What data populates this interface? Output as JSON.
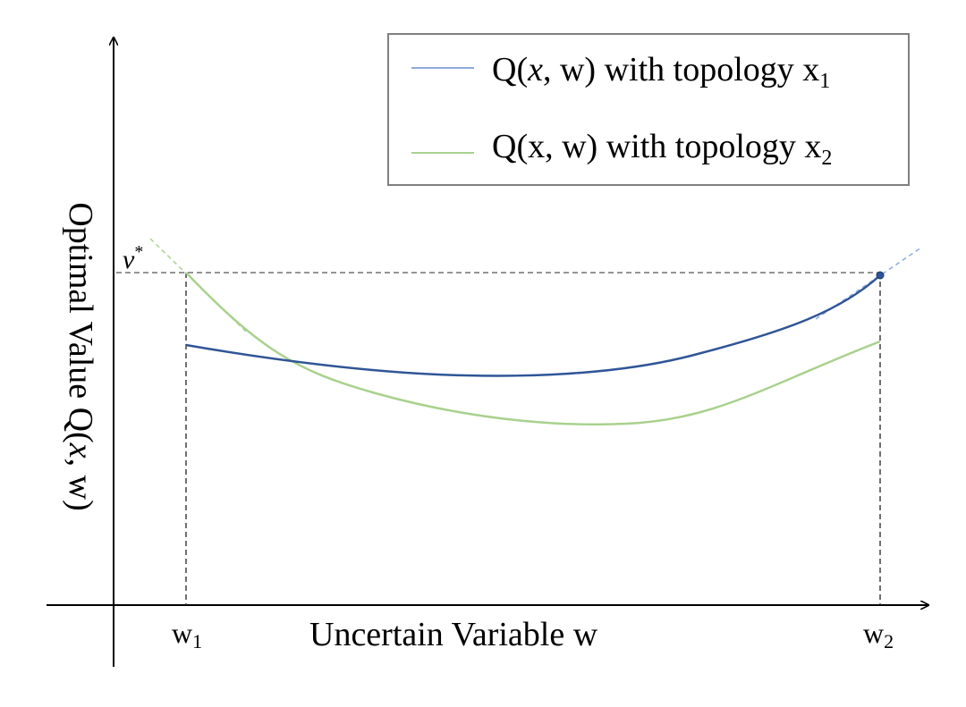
{
  "figure": {
    "y_axis_label": {
      "prefix": "Optimal Value Q(",
      "var": "x",
      "suffix": ", w)"
    },
    "x_axis_label": "Uncertain Variable w",
    "tick_w1": {
      "base": "w",
      "sub": "1"
    },
    "tick_w2": {
      "base": "w",
      "sub": "2"
    },
    "v_star": {
      "base": "v",
      "sup": "*"
    }
  },
  "legend": {
    "items": [
      {
        "prefix": "Q(",
        "var": "x",
        "suffix": ", w) with topology x",
        "sub": "1",
        "color": "#8faadc"
      },
      {
        "prefix": "Q(",
        "var": "x",
        "suffix": ", w) with topology x",
        "sub": "2",
        "color": "#a9d18e",
        "var_plain": true
      }
    ]
  },
  "colors": {
    "curve_x1": "#2f5597",
    "curve_x2": "#a9d18e",
    "tangent_x1": "#8faadc",
    "tangent_x2": "#a9d18e",
    "guide": "#555555",
    "axis": "#000000",
    "legend_border": "#7f7f7f"
  }
}
